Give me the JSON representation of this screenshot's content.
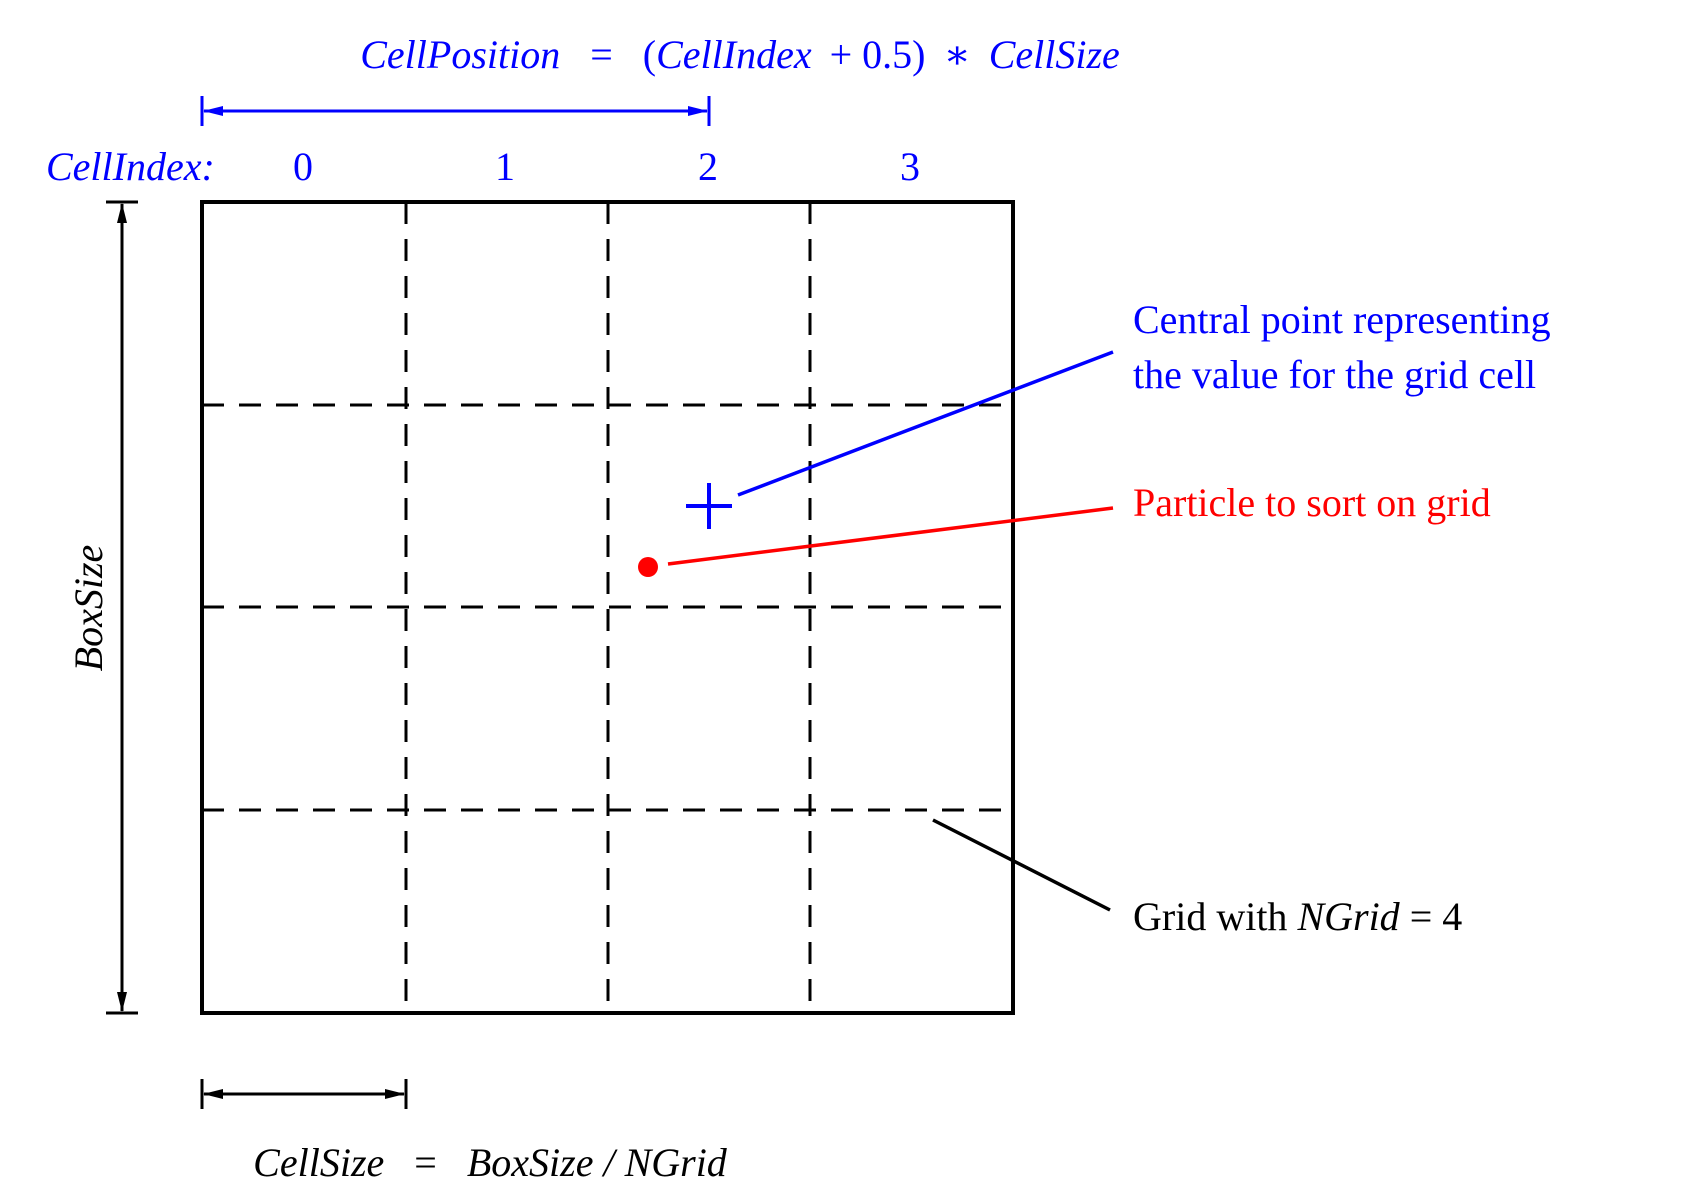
{
  "colors": {
    "blue": "#0000ff",
    "red": "#ff0000",
    "black": "#000000"
  },
  "grid": {
    "ngrid": 4
  },
  "formulas": {
    "cell_position": {
      "lhs": "CellPosition",
      "eq": "=",
      "open": "(",
      "var": "CellIndex",
      "plus_val": "+ 0.5)",
      "times": "∗",
      "rhs": "CellSize"
    },
    "cell_size": {
      "lhs": "CellSize",
      "eq": "=",
      "rhs": "BoxSize / NGrid"
    }
  },
  "cell_index": {
    "label": "CellIndex:",
    "values": [
      "0",
      "1",
      "2",
      "3"
    ]
  },
  "box_size_label": "BoxSize",
  "annotations": {
    "central_point": {
      "line1": "Central point representing",
      "line2": "the value for the grid cell"
    },
    "particle": "Particle to sort on grid",
    "grid": {
      "prefix": "Grid with ",
      "var": "NGrid",
      "suffix": " = 4"
    }
  }
}
